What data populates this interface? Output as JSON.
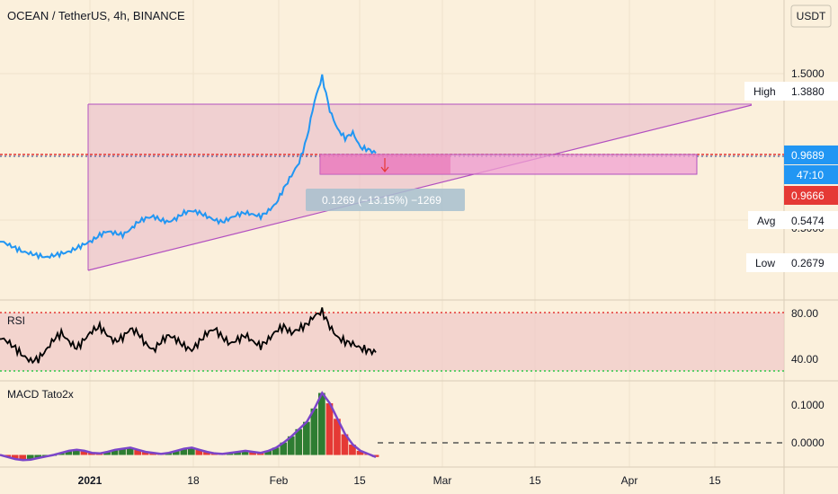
{
  "header": {
    "title": "OCEAN / TetherUS, 4h, BINANCE",
    "currency_button": "USDT"
  },
  "colors": {
    "background": "#fbf0dc",
    "price_line": "#2196f3",
    "triangle_fill": "#e8b6c8",
    "triangle_stroke": "#b24fc0",
    "box_fill": "#f0a0d2",
    "red_level": "#e53935",
    "rsi_band": "#f0c8c8",
    "macd_up": "#2e7d32",
    "macd_down": "#e53935",
    "macd_line": "#7b45c9"
  },
  "price_axis": {
    "ticks": [
      "1.5000"
    ],
    "markers": [
      {
        "label": "High",
        "value": "1.3880"
      },
      {
        "label": "",
        "value": "0.9689"
      },
      {
        "label": "",
        "value": "47:10"
      },
      {
        "label": "",
        "value": "0.9666"
      },
      {
        "label": "Avg",
        "value": "0.5474"
      },
      {
        "label": "Low",
        "value": "0.2679"
      }
    ],
    "partial_tick": "0.5000"
  },
  "measure_label": "0.1269 (−13.15%) −1269",
  "rsi": {
    "title": "RSI",
    "ticks": [
      "80.00",
      "40.00"
    ]
  },
  "macd": {
    "title": "MACD Tato2x",
    "ticks": [
      "0.1000",
      "0.0000"
    ]
  },
  "time_axis": {
    "ticks": [
      "2021",
      "18",
      "Feb",
      "15",
      "Mar",
      "15",
      "Apr",
      "15"
    ]
  },
  "chart_data": {
    "type": "line",
    "symbol": "OCEAN / TetherUS",
    "interval": "4h",
    "exchange": "BINANCE",
    "x_start": "2020-12-20",
    "x_last": "2021-02-18",
    "x_end": "2021-04-20",
    "price_series": [
      0.5,
      0.48,
      0.46,
      0.44,
      0.43,
      0.42,
      0.41,
      0.42,
      0.43,
      0.44,
      0.46,
      0.48,
      0.5,
      0.53,
      0.55,
      0.54,
      0.53,
      0.56,
      0.6,
      0.62,
      0.63,
      0.61,
      0.6,
      0.62,
      0.65,
      0.66,
      0.65,
      0.63,
      0.61,
      0.6,
      0.62,
      0.64,
      0.65,
      0.64,
      0.63,
      0.66,
      0.7,
      0.78,
      0.85,
      0.92,
      1.05,
      1.25,
      1.38,
      1.2,
      1.1,
      1.05,
      1.08,
      1.0,
      0.99,
      0.97
    ],
    "rsi_series": [
      62,
      58,
      52,
      45,
      40,
      42,
      50,
      60,
      66,
      58,
      52,
      60,
      68,
      72,
      64,
      58,
      62,
      70,
      66,
      56,
      50,
      58,
      64,
      60,
      54,
      50,
      58,
      66,
      70,
      62,
      56,
      60,
      64,
      58,
      54,
      60,
      68,
      72,
      66,
      70,
      74,
      82,
      86,
      72,
      62,
      58,
      56,
      52,
      50,
      48
    ],
    "macd_histogram": [
      0.0,
      -0.004,
      -0.008,
      -0.01,
      -0.009,
      -0.006,
      -0.003,
      0.0,
      0.004,
      0.008,
      0.01,
      0.008,
      0.004,
      0.003,
      0.006,
      0.01,
      0.012,
      0.014,
      0.01,
      0.006,
      0.004,
      0.002,
      0.004,
      0.008,
      0.012,
      0.014,
      0.01,
      0.006,
      0.003,
      0.002,
      0.004,
      0.006,
      0.008,
      0.006,
      0.004,
      0.008,
      0.014,
      0.024,
      0.036,
      0.05,
      0.064,
      0.09,
      0.12,
      0.1,
      0.07,
      0.04,
      0.02,
      0.008,
      0.002,
      -0.004
    ],
    "price_ylim": [
      0.2,
      1.6
    ],
    "rsi_ylim": [
      25,
      95
    ],
    "macd_ylim": [
      -0.02,
      0.14
    ],
    "levels": {
      "high": 1.388,
      "last": 0.9689,
      "close": 0.9666,
      "avg": 0.5474,
      "low": 0.2679
    },
    "rsi_bands": [
      80,
      30
    ],
    "grid": true
  }
}
